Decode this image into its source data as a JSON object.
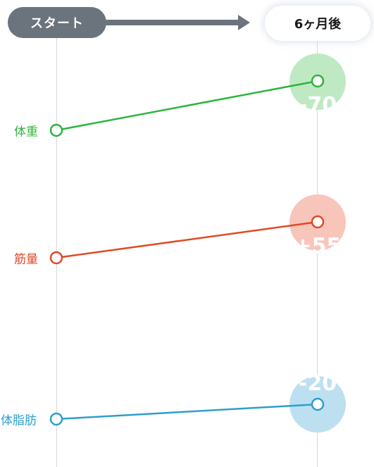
{
  "header": {
    "start_label": "スタート",
    "end_label": "6ヶ月後"
  },
  "series": [
    {
      "key": "weight",
      "label": "体重",
      "color": "#2db53c",
      "bubble_color": "#bfe9c3",
      "bubble_text": "-70"
    },
    {
      "key": "muscle",
      "label": "筋量",
      "color": "#e04a26",
      "bubble_color": "#f8c5bb",
      "bubble_text": "+55"
    },
    {
      "key": "fat",
      "label": "体脂肪",
      "color": "#2d9fce",
      "bubble_color": "#bde0f1",
      "bubble_text": "-20"
    }
  ]
}
